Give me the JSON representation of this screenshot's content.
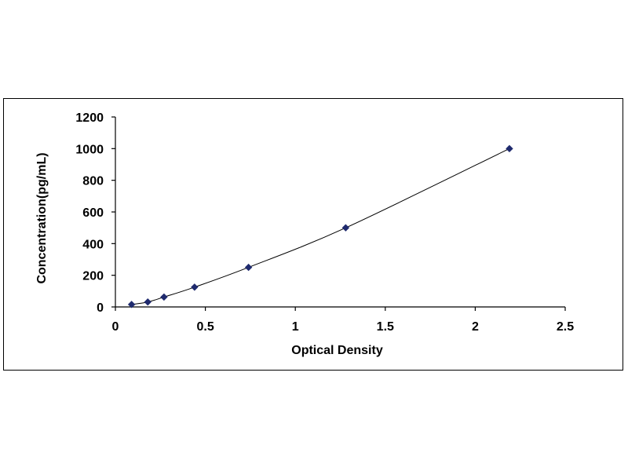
{
  "chart_data": {
    "type": "scatter",
    "title": "",
    "xlabel": "Optical Density",
    "ylabel": "Concentration(pg/mL)",
    "xlim": [
      0,
      2.5
    ],
    "ylim": [
      0,
      1200
    ],
    "x_ticks": [
      "0",
      "0.5",
      "1",
      "1.5",
      "2",
      "2.5"
    ],
    "y_ticks": [
      "0",
      "200",
      "400",
      "600",
      "800",
      "1000",
      "1200"
    ],
    "grid": false,
    "legend": "none",
    "trendline": "smooth curve through points",
    "series": [
      {
        "x": [
          0.09,
          0.18,
          0.27,
          0.44,
          0.74,
          1.28,
          2.19
        ],
        "y": [
          15.6,
          31.2,
          62.5,
          125,
          250,
          500,
          1000
        ],
        "marker": "diamond",
        "color": "#1f2a6e"
      }
    ],
    "line_color": "#000000"
  }
}
